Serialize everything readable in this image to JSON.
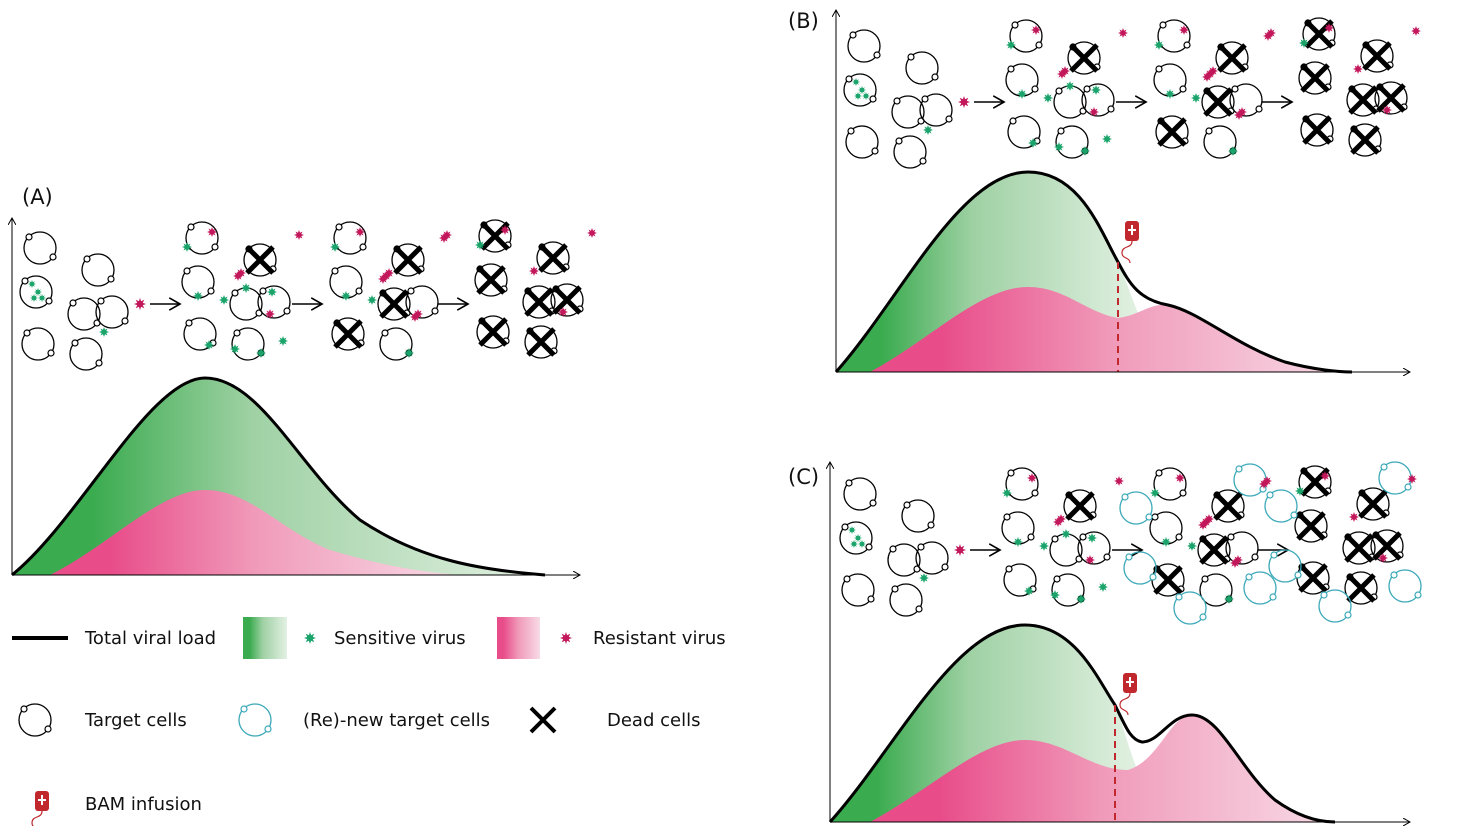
{
  "panels": {
    "a": "(A)",
    "b": "(B)",
    "c": "(C)"
  },
  "legend": {
    "total": "Total viral load",
    "sensitive": "Sensitive virus",
    "resistant": "Resistant virus",
    "target": "Target cells",
    "renew": "(Re)-new target cells",
    "dead": "Dead cells",
    "bam": "BAM infusion"
  }
}
